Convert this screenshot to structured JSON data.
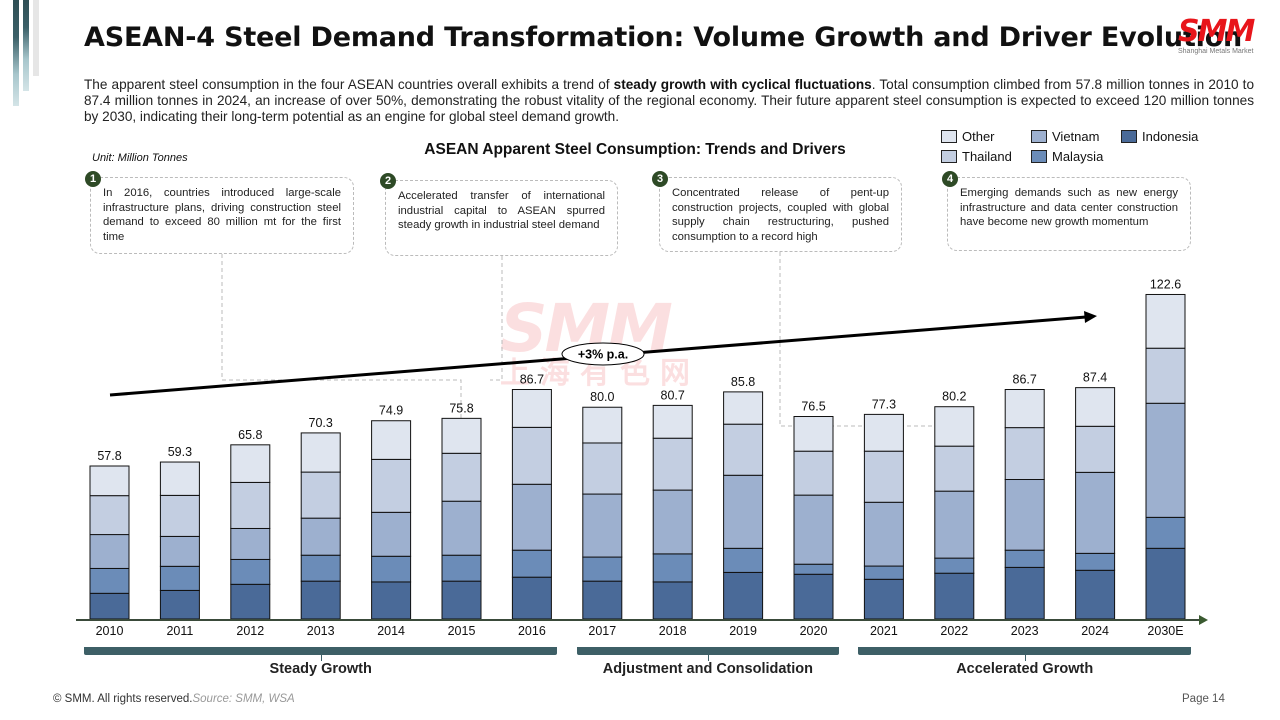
{
  "header": {
    "title": "ASEAN-4 Steel Demand Transformation: Volume Growth and Driver Evolution",
    "logo_text": "SMM",
    "logo_subtext": "Shanghai Metals Market"
  },
  "intro": {
    "part1": "The apparent steel consumption in the four ASEAN countries overall exhibits a trend of ",
    "bold": "steady growth with cyclical fluctuations",
    "part2": ". Total consumption climbed from 57.8 million tonnes in 2010 to 87.4 million tonnes in 2024, an increase of over 50%, demonstrating the robust vitality of the regional economy. Their future apparent steel consumption is expected to exceed 120 million tonnes by 2030, indicating their long-term potential as an engine for global steel demand growth."
  },
  "watermark": {
    "main": "SMM",
    "sub": "上海有色网"
  },
  "notes": [
    {
      "num": "1",
      "text": "In 2016, countries introduced large-scale infrastructure plans, driving construction steel demand to exceed 80 million mt for the first time"
    },
    {
      "num": "2",
      "text": "Accelerated transfer of international industrial capital to ASEAN spurred steady growth in industrial steel demand"
    },
    {
      "num": "3",
      "text": "Concentrated release of pent-up construction projects, coupled with global supply chain restructuring, pushed consumption to a record high"
    },
    {
      "num": "4",
      "text": "Emerging demands such as new energy infrastructure and data center construction have become new growth momentum"
    }
  ],
  "phases": [
    {
      "label": "Steady Growth",
      "from": "2010",
      "to": "2016"
    },
    {
      "label": "Adjustment and Consolidation",
      "from": "2017",
      "to": "2020"
    },
    {
      "label": "Accelerated Growth",
      "from": "2021",
      "to": "2030E"
    }
  ],
  "footer": {
    "copyright": "© SMM. All rights reserved.",
    "source": "Source: SMM, WSA",
    "page": "Page 14"
  },
  "chart_data": {
    "type": "bar",
    "stacked": true,
    "title": "ASEAN Apparent Steel Consumption: Trends and Drivers",
    "unit_label": "Unit: Million Tonnes",
    "xlabel": "",
    "ylabel": "",
    "ylim": [
      0,
      125
    ],
    "grid": false,
    "legend_position": "top-right",
    "categories": [
      "2010",
      "2011",
      "2012",
      "2013",
      "2014",
      "2015",
      "2016",
      "2017",
      "2018",
      "2019",
      "2020",
      "2021",
      "2022",
      "2023",
      "2024",
      "2030E"
    ],
    "totals": [
      57.8,
      59.3,
      65.8,
      70.3,
      74.9,
      75.8,
      86.7,
      80.0,
      80.7,
      85.8,
      76.5,
      77.3,
      80.2,
      86.7,
      87.4,
      122.6
    ],
    "series": [
      {
        "name": "Indonesia",
        "color": "#4a6a98",
        "values": [
          9.7,
          10.8,
          13.1,
          14.3,
          14.0,
          14.3,
          15.8,
          14.3,
          14.0,
          17.6,
          16.9,
          15.0,
          17.3,
          19.5,
          18.4,
          26.7
        ]
      },
      {
        "name": "Malaysia",
        "color": "#6b8cb8",
        "values": [
          9.4,
          9.1,
          9.4,
          9.8,
          9.7,
          9.8,
          10.2,
          9.1,
          10.6,
          9.1,
          3.8,
          5.0,
          5.7,
          6.5,
          6.4,
          11.7
        ]
      },
      {
        "name": "Vietnam",
        "color": "#9db0cf",
        "values": [
          12.8,
          11.3,
          11.7,
          14.0,
          16.6,
          20.4,
          24.9,
          23.8,
          24.1,
          27.6,
          26.1,
          24.1,
          25.3,
          26.7,
          30.6,
          43.1
        ]
      },
      {
        "name": "Thailand",
        "color": "#c3cee1",
        "values": [
          14.7,
          15.5,
          17.4,
          17.4,
          20.0,
          18.1,
          21.5,
          19.3,
          19.6,
          19.3,
          16.6,
          19.3,
          17.0,
          19.6,
          17.4,
          20.8
        ]
      },
      {
        "name": "Other",
        "color": "#dfe5ef",
        "values": [
          11.2,
          12.6,
          14.2,
          14.8,
          14.6,
          13.2,
          14.3,
          13.5,
          12.4,
          12.2,
          13.1,
          13.9,
          14.9,
          14.4,
          14.6,
          20.3
        ]
      }
    ],
    "legend_order": [
      "Other",
      "Vietnam",
      "Indonesia",
      "Thailand",
      "Malaysia"
    ],
    "trend_annotation": "+3% p.a."
  }
}
